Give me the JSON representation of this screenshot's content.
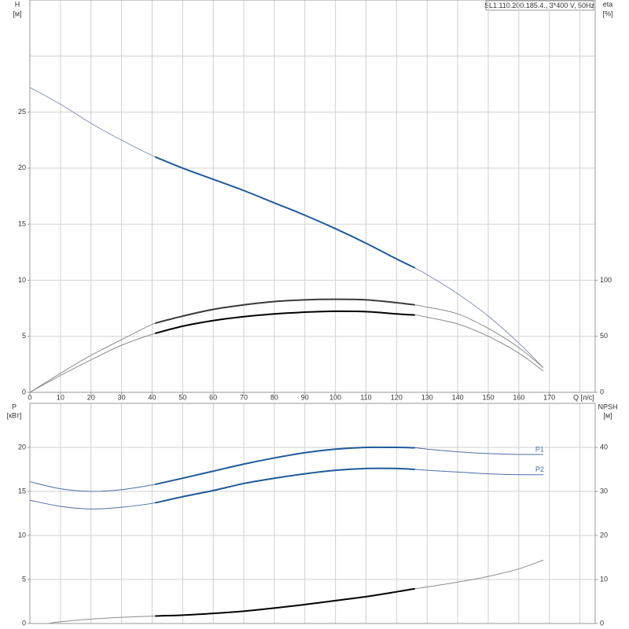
{
  "chart_data": [
    {
      "type": "line",
      "title": "SL1.110.200.185.4., 3*400 V, 50Hz",
      "x_label": "Q [л/с]",
      "y_label": "H",
      "y_unit": "[м]",
      "y2_label": "eta",
      "y2_unit": "[%]",
      "xlim": [
        0,
        185
      ],
      "xticks": [
        0,
        10,
        20,
        30,
        40,
        50,
        60,
        70,
        80,
        90,
        100,
        110,
        120,
        130,
        140,
        150,
        160,
        170
      ],
      "xgrid": [
        0,
        10,
        20,
        30,
        40,
        50,
        60,
        70,
        80,
        90,
        100,
        110,
        120,
        130,
        140,
        150,
        160,
        170,
        180
      ],
      "ylim": [
        0,
        35
      ],
      "yticks": [
        0,
        5,
        10,
        15,
        20,
        25
      ],
      "ygrid": [
        0,
        5,
        10,
        15,
        20,
        25,
        30,
        35
      ],
      "y2lim": [
        0,
        350
      ],
      "y2ticks": [
        0,
        50,
        100
      ],
      "highlight": [
        41,
        126
      ],
      "series": [
        {
          "color": "#8a96b4",
          "highlight_color": "#1f5a9a",
          "axis": "y",
          "x": [
            0,
            10,
            20,
            30,
            41,
            50,
            60,
            70,
            80,
            90,
            100,
            110,
            120,
            126,
            130,
            140,
            150,
            160,
            168
          ],
          "values": [
            27.2,
            25.7,
            24.0,
            22.5,
            21.0,
            20.0,
            19.0,
            18.0,
            16.9,
            15.8,
            14.6,
            13.3,
            11.9,
            11.1,
            10.5,
            8.8,
            6.8,
            4.4,
            2.2
          ]
        },
        {
          "color": "#8c8c8c",
          "highlight_color": "#3a3a3a",
          "axis": "y2",
          "x": [
            0,
            10,
            20,
            30,
            41,
            50,
            60,
            70,
            80,
            90,
            100,
            110,
            120,
            126,
            130,
            140,
            150,
            160,
            168
          ],
          "values": [
            0,
            17,
            33,
            47,
            61.7,
            68,
            74,
            78,
            81,
            82.5,
            83,
            82.5,
            80,
            78,
            76,
            70,
            57,
            40,
            22
          ]
        },
        {
          "color": "#8c8c8c",
          "highlight_color": "#000000",
          "axis": "y2",
          "x": [
            0,
            10,
            20,
            30,
            41,
            50,
            60,
            70,
            80,
            90,
            100,
            110,
            120,
            126,
            130,
            140,
            150,
            160,
            168
          ],
          "values": [
            0,
            15,
            29,
            42,
            52.6,
            59,
            64,
            67.5,
            70,
            71.5,
            72.3,
            72,
            70,
            69,
            67,
            61,
            50,
            35,
            19
          ]
        }
      ]
    },
    {
      "type": "line",
      "y_label": "P",
      "y_unit": "[кВт]",
      "y2_label": "NPSH",
      "y2_unit": "[м]",
      "xlim": [
        0,
        185
      ],
      "xgrid": [
        0,
        10,
        20,
        30,
        40,
        50,
        60,
        70,
        80,
        90,
        100,
        110,
        120,
        130,
        140,
        150,
        160,
        170,
        180
      ],
      "ylim": [
        0,
        25
      ],
      "yticks": [
        0,
        5,
        10,
        15,
        20
      ],
      "ygrid": [
        0,
        5,
        10,
        15,
        20,
        25
      ],
      "y2lim": [
        0,
        50
      ],
      "y2ticks": [
        0,
        10,
        20,
        30,
        40
      ],
      "highlight": [
        41,
        126
      ],
      "series": [
        {
          "name": "P1",
          "color": "#4a6fa5",
          "highlight_color": "#1f5a9a",
          "axis": "y",
          "x": [
            0,
            10,
            20,
            30,
            41,
            50,
            60,
            70,
            80,
            90,
            100,
            110,
            120,
            126,
            130,
            140,
            150,
            160,
            168
          ],
          "values": [
            16.1,
            15.3,
            15.0,
            15.2,
            15.8,
            16.5,
            17.3,
            18.1,
            18.8,
            19.4,
            19.8,
            20.0,
            20.0,
            19.95,
            19.8,
            19.5,
            19.3,
            19.2,
            19.2
          ]
        },
        {
          "name": "P2",
          "color": "#4a6fa5",
          "highlight_color": "#1f5a9a",
          "axis": "y",
          "x": [
            0,
            10,
            20,
            30,
            41,
            50,
            60,
            70,
            80,
            90,
            100,
            110,
            120,
            126,
            130,
            140,
            150,
            160,
            168
          ],
          "values": [
            14.0,
            13.3,
            13.0,
            13.2,
            13.7,
            14.4,
            15.1,
            15.9,
            16.5,
            17.0,
            17.4,
            17.6,
            17.6,
            17.5,
            17.4,
            17.2,
            17.0,
            16.9,
            16.9
          ]
        },
        {
          "color": "#8c8c8c",
          "highlight_color": "#000000",
          "axis": "y2",
          "x": [
            6,
            10,
            20,
            30,
            41,
            50,
            60,
            70,
            80,
            90,
            100,
            110,
            120,
            126,
            130,
            140,
            150,
            160,
            168
          ],
          "values": [
            0,
            0.4,
            1.0,
            1.4,
            1.7,
            1.9,
            2.3,
            2.8,
            3.5,
            4.3,
            5.2,
            6.1,
            7.2,
            7.9,
            8.3,
            9.4,
            10.7,
            12.4,
            14.4
          ]
        }
      ]
    }
  ]
}
